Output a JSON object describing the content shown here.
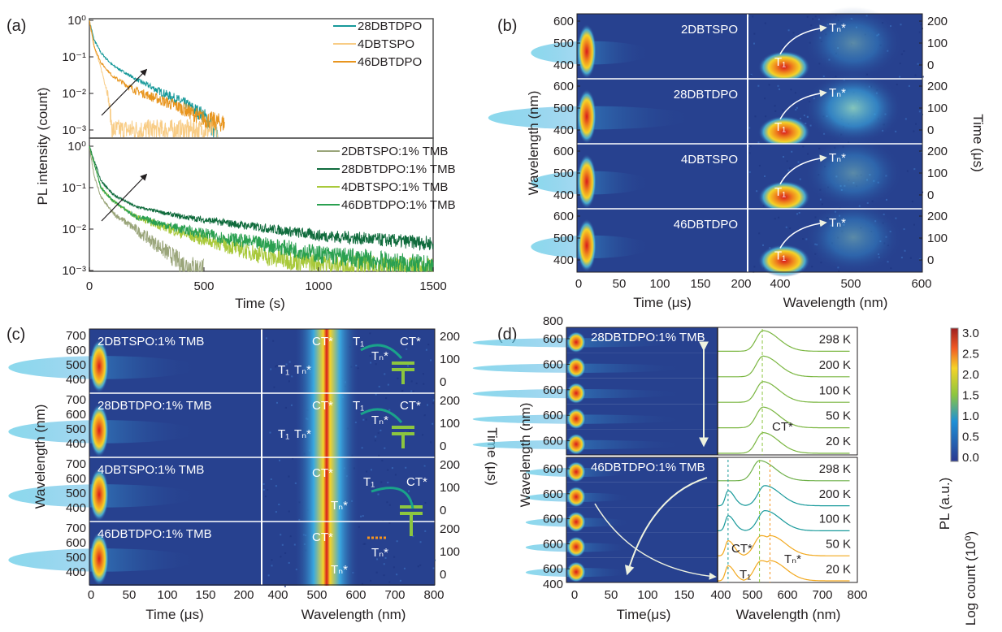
{
  "colors": {
    "heat_low": "#27418f",
    "heat_mid": "#3aa8e0",
    "heat_high": "#d7191c",
    "heat_warm": "#f5d327"
  },
  "chart_data": [
    {
      "panel": "(a)",
      "type": "line",
      "yscale": "log",
      "ylabel": "PL intensity (count)",
      "xlabel": "Time (s)",
      "xlim": [
        0,
        1500
      ],
      "xticks": [
        "0",
        "500",
        "1000",
        "1500"
      ],
      "subplots": [
        {
          "ylim": [
            0.001,
            1
          ],
          "yticks": [
            "10⁰",
            "10⁻¹",
            "10⁻²",
            "10⁻³"
          ],
          "legend": "top-right",
          "series": [
            {
              "name": "28DBTDPO",
              "color": "#17999a",
              "points": [
                [
                  0,
                  1
                ],
                [
                  20,
                  0.3
                ],
                [
                  50,
                  0.13
                ],
                [
                  100,
                  0.06
                ],
                [
                  200,
                  0.025
                ],
                [
                  300,
                  0.012
                ],
                [
                  400,
                  0.006
                ],
                [
                  500,
                  0.0025
                ],
                [
                  560,
                  0.0007
                ]
              ]
            },
            {
              "name": "4DBTSPO",
              "color": "#f8cc85",
              "points": [
                [
                  0,
                  1
                ],
                [
                  20,
                  0.2
                ],
                [
                  50,
                  0.05
                ],
                [
                  80,
                  0.01
                ],
                [
                  100,
                  0.001
                ],
                [
                  560,
                  0.001
                ]
              ]
            },
            {
              "name": "46DBTDPO",
              "color": "#e8951e",
              "points": [
                [
                  0,
                  1
                ],
                [
                  20,
                  0.2
                ],
                [
                  50,
                  0.07
                ],
                [
                  100,
                  0.03
                ],
                [
                  200,
                  0.012
                ],
                [
                  300,
                  0.007
                ],
                [
                  400,
                  0.004
                ],
                [
                  500,
                  0.002
                ],
                [
                  590,
                  0.0015
                ]
              ]
            }
          ]
        },
        {
          "ylim": [
            0.001,
            1
          ],
          "yticks": [
            "10⁰",
            "10⁻¹",
            "10⁻²",
            "10⁻³"
          ],
          "legend": "top-right",
          "series": [
            {
              "name": "2DBTSPO:1% TMB",
              "color": "#9aa57a",
              "points": [
                [
                  0,
                  1
                ],
                [
                  20,
                  0.2
                ],
                [
                  50,
                  0.06
                ],
                [
                  100,
                  0.025
                ],
                [
                  200,
                  0.01
                ],
                [
                  300,
                  0.004
                ],
                [
                  400,
                  0.0015
                ],
                [
                  500,
                  0.001
                ]
              ]
            },
            {
              "name": "28DBTDPO:1% TMB",
              "color": "#0f6b3c",
              "points": [
                [
                  0,
                  1
                ],
                [
                  50,
                  0.15
                ],
                [
                  100,
                  0.07
                ],
                [
                  200,
                  0.035
                ],
                [
                  400,
                  0.02
                ],
                [
                  600,
                  0.014
                ],
                [
                  800,
                  0.01
                ],
                [
                  1000,
                  0.007
                ],
                [
                  1500,
                  0.0045
                ]
              ]
            },
            {
              "name": "4DBTSPO:1% TMB",
              "color": "#a9c93b",
              "points": [
                [
                  0,
                  1
                ],
                [
                  50,
                  0.1
                ],
                [
                  100,
                  0.05
                ],
                [
                  200,
                  0.02
                ],
                [
                  400,
                  0.008
                ],
                [
                  600,
                  0.004
                ],
                [
                  800,
                  0.002
                ],
                [
                  1000,
                  0.0015
                ],
                [
                  1500,
                  0.001
                ]
              ]
            },
            {
              "name": "46DBTDPO:1% TMB",
              "color": "#2aa050",
              "points": [
                [
                  0,
                  1
                ],
                [
                  50,
                  0.1
                ],
                [
                  100,
                  0.05
                ],
                [
                  200,
                  0.02
                ],
                [
                  400,
                  0.01
                ],
                [
                  600,
                  0.006
                ],
                [
                  800,
                  0.004
                ],
                [
                  1000,
                  0.0025
                ],
                [
                  1500,
                  0.0012
                ]
              ]
            }
          ]
        }
      ]
    },
    {
      "panel": "(b)",
      "type": "heatmap",
      "ylabel": "Wavelength (nm)",
      "ylabel_right": "Time (μs)",
      "xlabel_left": "Time (μs)",
      "xlabel_right": "Wavelength (nm)",
      "xticks_left": [
        "0",
        "50",
        "100",
        "150",
        "200"
      ],
      "xticks_right": [
        "400",
        "500",
        "600"
      ],
      "yticks_left": [
        "600",
        "500",
        "400"
      ],
      "yticks_right": [
        "200",
        "100",
        "0"
      ],
      "rows": [
        "2DBTSPO",
        "28DBTDPO",
        "4DBTSPO",
        "46DBTDPO"
      ],
      "annotations": [
        "T₁",
        "Tₙ*"
      ]
    },
    {
      "panel": "(c)",
      "type": "heatmap",
      "ylabel": "Wavelength (nm)",
      "ylabel_right": "Time (μs)",
      "xlabel_left": "Time (μs)",
      "xlabel_right": "Wavelength (nm)",
      "xticks_left": [
        "0",
        "50",
        "100",
        "150",
        "200"
      ],
      "xticks_right": [
        "400",
        "500",
        "600",
        "700",
        "800"
      ],
      "yticks_left": [
        "700",
        "600",
        "500",
        "400"
      ],
      "yticks_right": [
        "200",
        "100",
        "0"
      ],
      "rows": [
        "2DBTSPO:1% TMB",
        "28DBTDPO:1% TMB",
        "4DBTSPO:1% TMB",
        "46DBTDPO:1% TMB"
      ],
      "annotations": [
        "T₁",
        "Tₙ*",
        "CT*"
      ]
    },
    {
      "panel": "(d)",
      "type": "heatmap",
      "ylabel": "Wavelength (nm)",
      "xlabel_left": "Time(μs)",
      "xlabel_right": "Wavelength (nm)",
      "xticks_left": [
        "0",
        "50",
        "100",
        "150",
        "400"
      ],
      "xticks_right": [
        "500",
        "600",
        "700",
        "800"
      ],
      "yticks_left": [
        "800",
        "600",
        "400"
      ],
      "groups": [
        {
          "name": "28DBTDPO:1% TMB",
          "temps": [
            "298 K",
            "200 K",
            "100 K",
            "50 K",
            "20 K"
          ],
          "spectra_peaks_nm": [
            [
              530
            ],
            [
              530
            ],
            [
              530
            ],
            [
              530
            ],
            [
              530
            ]
          ],
          "colors": [
            "#7ab640",
            "#7ab640",
            "#7ab640",
            "#7ab640",
            "#7ab640"
          ],
          "annotations": [
            "CT*"
          ]
        },
        {
          "name": "46DBTDPO:1% TMB",
          "temps": [
            "298 K",
            "200 K",
            "100 K",
            "50 K",
            "20 K"
          ],
          "spectra_peaks_nm": [
            [
              520
            ],
            [
              430,
              535
            ],
            [
              430,
              535
            ],
            [
              430,
              525,
              550
            ],
            [
              430,
              525,
              550
            ]
          ],
          "colors": [
            "#6fb04a",
            "#17999a",
            "#17999a",
            "#f2a81d",
            "#f2a81d"
          ],
          "annotations": [
            "CT*",
            "Tₙ*",
            "T₁"
          ]
        }
      ],
      "colorbar": {
        "ticks": [
          "3.0",
          "2.5",
          "2.0",
          "1.5",
          "1.0",
          "0.5",
          "0.0"
        ],
        "range": [
          0,
          3
        ],
        "label": "PL (a.u.)",
        "label2": "Log count (10⁰)"
      }
    }
  ]
}
